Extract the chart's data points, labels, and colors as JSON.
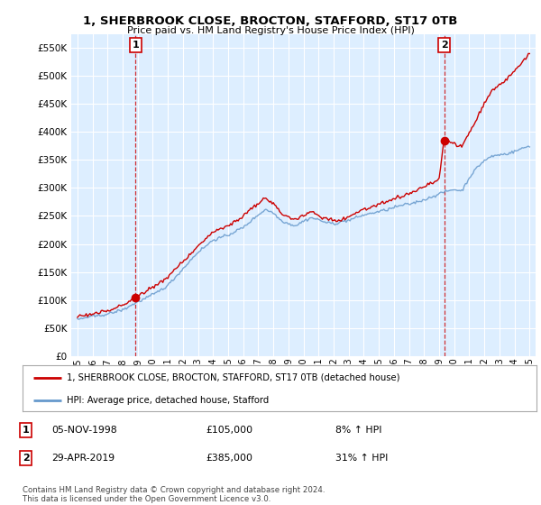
{
  "title": "1, SHERBROOK CLOSE, BROCTON, STAFFORD, ST17 0TB",
  "subtitle": "Price paid vs. HM Land Registry's House Price Index (HPI)",
  "legend_label_red": "1, SHERBROOK CLOSE, BROCTON, STAFFORD, ST17 0TB (detached house)",
  "legend_label_blue": "HPI: Average price, detached house, Stafford",
  "footnote": "Contains HM Land Registry data © Crown copyright and database right 2024.\nThis data is licensed under the Open Government Licence v3.0.",
  "transaction1_label": "1",
  "transaction1_date": "05-NOV-1998",
  "transaction1_price": "£105,000",
  "transaction1_hpi": "8% ↑ HPI",
  "transaction2_label": "2",
  "transaction2_date": "29-APR-2019",
  "transaction2_price": "£385,000",
  "transaction2_hpi": "31% ↑ HPI",
  "ylim": [
    0,
    575000
  ],
  "yticks": [
    0,
    50000,
    100000,
    150000,
    200000,
    250000,
    300000,
    350000,
    400000,
    450000,
    500000,
    550000
  ],
  "background_color": "#ffffff",
  "plot_bg_color": "#ddeeff",
  "grid_color": "#ffffff",
  "red_color": "#cc0000",
  "blue_color": "#6699cc",
  "marker1_x": 1998.85,
  "marker1_y": 105000,
  "marker2_x": 2019.33,
  "marker2_y": 385000,
  "vline1_x": 1998.85,
  "vline2_x": 2019.33,
  "xmin": 1995.0,
  "xmax": 2025.0
}
